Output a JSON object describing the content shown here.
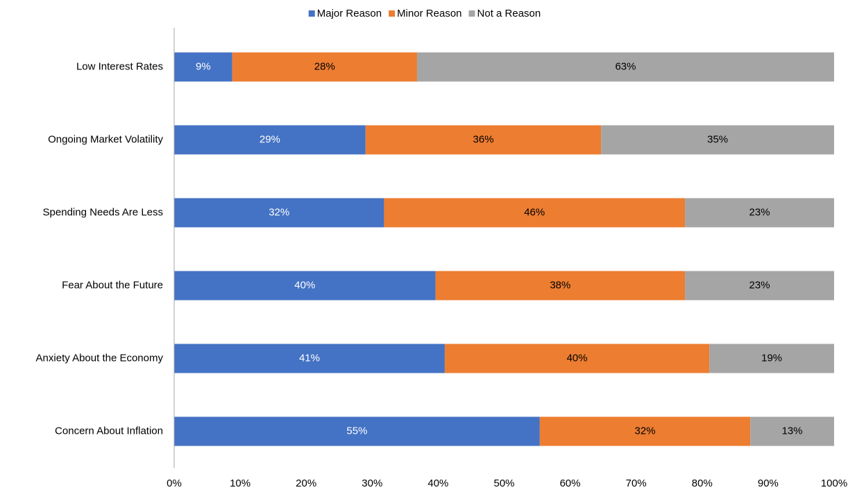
{
  "chart_data": {
    "type": "stacked-barh",
    "categories": [
      "Low Interest Rates",
      "Ongoing Market Volatility",
      "Spending Needs Are Less",
      "Fear About the Future",
      "Anxiety About the Economy",
      "Concern About Inflation"
    ],
    "series": [
      {
        "name": "Major Reason",
        "color": "#4472c4",
        "label_color": "#ffffff",
        "values": [
          8.8,
          29.0,
          31.8,
          39.6,
          41.0,
          55.4
        ],
        "value_labels": [
          "9%",
          "29%",
          "32%",
          "40%",
          "41%",
          "55%"
        ]
      },
      {
        "name": "Minor Reason",
        "color": "#ed7d31",
        "label_color": "#000000",
        "values": [
          28.0,
          35.7,
          45.6,
          37.8,
          40.1,
          31.9
        ],
        "value_labels": [
          "28%",
          "36%",
          "46%",
          "38%",
          "40%",
          "32%"
        ]
      },
      {
        "name": "Not a Reason",
        "color": "#a5a5a5",
        "label_color": "#000000",
        "values": [
          63.2,
          35.3,
          22.6,
          22.6,
          18.9,
          12.7
        ],
        "value_labels": [
          "63%",
          "35%",
          "23%",
          "23%",
          "19%",
          "13%"
        ]
      }
    ],
    "xlim": [
      0,
      100
    ],
    "xticks": [
      {
        "value": 0,
        "label": "0%"
      },
      {
        "value": 10,
        "label": "10%"
      },
      {
        "value": 20,
        "label": "20%"
      },
      {
        "value": 30,
        "label": "30%"
      },
      {
        "value": 40,
        "label": "40%"
      },
      {
        "value": 50,
        "label": "50%"
      },
      {
        "value": 60,
        "label": "60%"
      },
      {
        "value": 70,
        "label": "70%"
      },
      {
        "value": 80,
        "label": "80%"
      },
      {
        "value": 90,
        "label": "90%"
      },
      {
        "value": 100,
        "label": "100%"
      }
    ],
    "legend": "top"
  }
}
